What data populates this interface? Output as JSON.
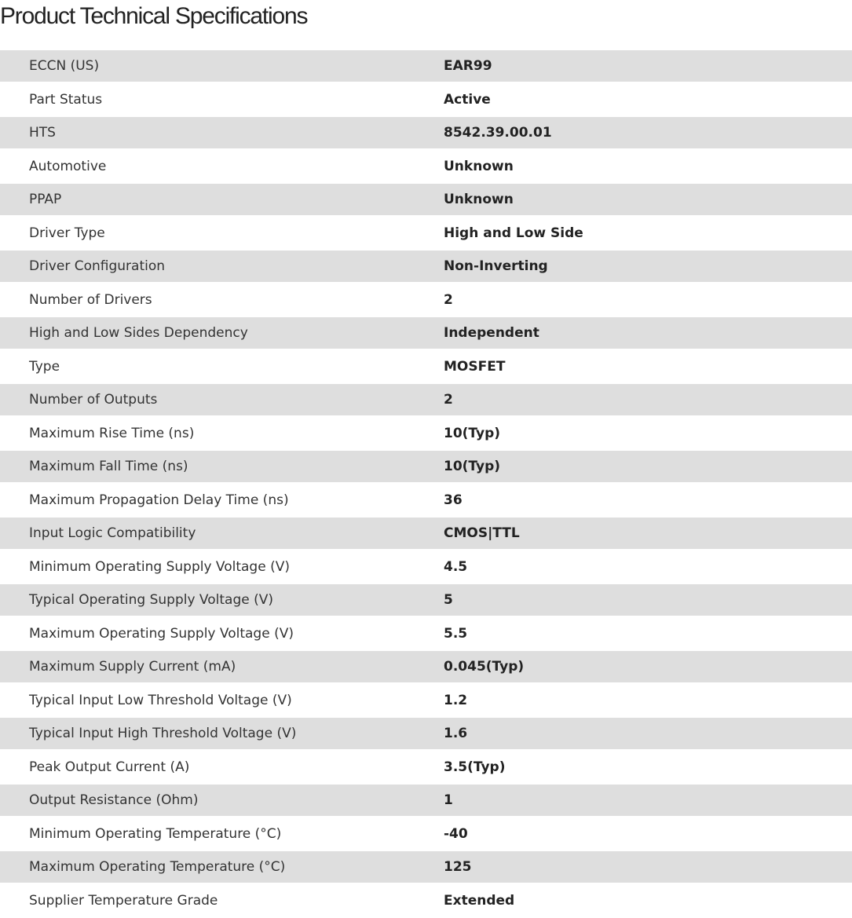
{
  "title": "Product Technical Specifications",
  "specs": [
    {
      "label": "ECCN (US)",
      "value": "EAR99"
    },
    {
      "label": "Part Status",
      "value": "Active"
    },
    {
      "label": "HTS",
      "value": "8542.39.00.01"
    },
    {
      "label": "Automotive",
      "value": "Unknown"
    },
    {
      "label": "PPAP",
      "value": "Unknown"
    },
    {
      "label": "Driver Type",
      "value": "High and Low Side"
    },
    {
      "label": "Driver Configuration",
      "value": "Non-Inverting"
    },
    {
      "label": "Number of Drivers",
      "value": "2"
    },
    {
      "label": "High and Low Sides Dependency",
      "value": "Independent"
    },
    {
      "label": "Type",
      "value": "MOSFET"
    },
    {
      "label": "Number of Outputs",
      "value": "2"
    },
    {
      "label": "Maximum Rise Time (ns)",
      "value": "10(Typ)"
    },
    {
      "label": "Maximum Fall Time (ns)",
      "value": "10(Typ)"
    },
    {
      "label": "Maximum Propagation Delay Time (ns)",
      "value": "36"
    },
    {
      "label": "Input Logic Compatibility",
      "value": "CMOS|TTL"
    },
    {
      "label": "Minimum Operating Supply Voltage (V)",
      "value": "4.5"
    },
    {
      "label": "Typical Operating Supply Voltage (V)",
      "value": "5"
    },
    {
      "label": "Maximum Operating Supply Voltage (V)",
      "value": "5.5"
    },
    {
      "label": "Maximum Supply Current (mA)",
      "value": "0.045(Typ)"
    },
    {
      "label": "Typical Input Low Threshold Voltage (V)",
      "value": "1.2"
    },
    {
      "label": "Typical Input High Threshold Voltage (V)",
      "value": "1.6"
    },
    {
      "label": "Peak Output Current (A)",
      "value": "3.5(Typ)"
    },
    {
      "label": "Output Resistance (Ohm)",
      "value": "1"
    },
    {
      "label": "Minimum Operating Temperature (°C)",
      "value": "-40"
    },
    {
      "label": "Maximum Operating Temperature (°C)",
      "value": "125"
    },
    {
      "label": "Supplier Temperature Grade",
      "value": "Extended"
    }
  ]
}
